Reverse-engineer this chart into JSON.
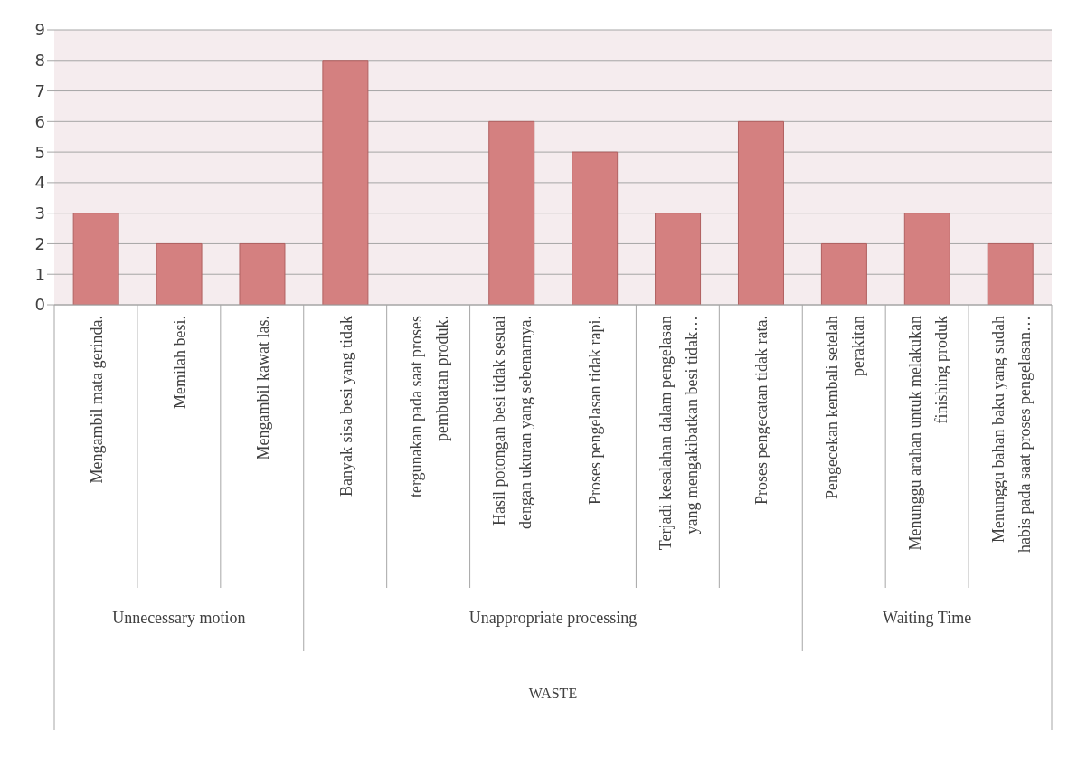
{
  "chart_data": {
    "type": "bar",
    "categories": [
      "Mengambil mata gerinda.",
      "Memilah besi.",
      "Mengambil kawat las.",
      "Banyak sisa besi yang tidak",
      "tergunakan pada saat proses pembuatan produk.",
      "Hasil potongan besi tidak sesuai dengan ukuran yang sebenarnya.",
      "Proses pengelasan tidak rapi.",
      "Terjadi kesalahan dalam pengelasan yang mengakibatkan besi tidak…",
      "Proses pengecatan tidak rata.",
      "Pengecekan kembali setelah perakitan",
      "Menunggu arahan untuk melakukan finishing produk",
      "Menunggu bahan baku yang sudah habis pada saat proses pengelasan…"
    ],
    "values": [
      3,
      2,
      2,
      8,
      null,
      6,
      5,
      3,
      6,
      2,
      3,
      2
    ],
    "color": "#d48080",
    "annotations": [
      "Unnecessary motion",
      "Unappropriate processing",
      "Waiting Time",
      "WASTE"
    ],
    "ylim": [
      0,
      9
    ],
    "yticks": [
      0,
      1,
      2,
      3,
      4,
      5,
      6,
      7,
      8,
      9
    ],
    "grid": "y",
    "legend": false
  }
}
